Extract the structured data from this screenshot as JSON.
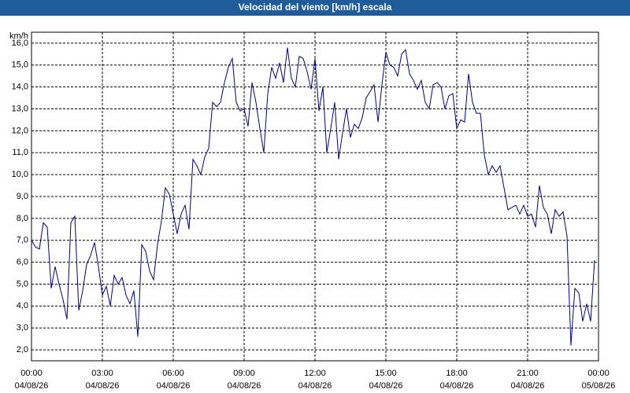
{
  "chart_data": {
    "type": "line",
    "title": "Velocidad del viento [km/h] escala",
    "y_unit": "km/h",
    "x": [
      0,
      10,
      20,
      30,
      40,
      50,
      60,
      70,
      80,
      90,
      100,
      110,
      120,
      130,
      140,
      150,
      160,
      170,
      180,
      190,
      200,
      210,
      220,
      230,
      240,
      250,
      260,
      270,
      280,
      290,
      300,
      310,
      320,
      330,
      340,
      350,
      360,
      370,
      380,
      390,
      400,
      410,
      420,
      430,
      440,
      450,
      460,
      470,
      480,
      490,
      500,
      510,
      520,
      530,
      540,
      550,
      560,
      570,
      580,
      590,
      600,
      610,
      620,
      630,
      640,
      650,
      660,
      670,
      680,
      690,
      700,
      710,
      720,
      730,
      740,
      750,
      760,
      770,
      780,
      790,
      800,
      810,
      820,
      830,
      840,
      850,
      860,
      870,
      880,
      890,
      900,
      910,
      920,
      930,
      940,
      950,
      960,
      970,
      980,
      990,
      1000,
      1010,
      1020,
      1030,
      1040,
      1050,
      1060,
      1070,
      1080,
      1090,
      1100,
      1110,
      1120,
      1130,
      1140,
      1150,
      1160,
      1170,
      1180,
      1190,
      1200,
      1210,
      1220,
      1230,
      1240,
      1250,
      1260,
      1270,
      1280,
      1290,
      1300,
      1310,
      1320,
      1330,
      1340,
      1350,
      1360,
      1370,
      1380,
      1390,
      1400,
      1410,
      1420,
      1430
    ],
    "series": [
      {
        "name": "Velocidad del viento",
        "color": "#00008b",
        "values": [
          7.0,
          6.7,
          6.6,
          7.8,
          7.6,
          4.8,
          5.8,
          5.0,
          4.3,
          3.4,
          7.8,
          8.1,
          3.8,
          4.7,
          5.9,
          6.3,
          6.9,
          5.8,
          4.5,
          4.9,
          4.0,
          5.4,
          5.0,
          5.3,
          4.5,
          4.1,
          4.7,
          2.6,
          6.8,
          6.5,
          5.6,
          5.2,
          6.8,
          7.9,
          9.4,
          9.1,
          8.2,
          7.3,
          8.2,
          8.6,
          7.5,
          10.7,
          10.4,
          10.0,
          10.8,
          11.2,
          13.3,
          13.1,
          13.3,
          14.2,
          14.9,
          15.3,
          13.3,
          12.9,
          13.0,
          12.2,
          14.2,
          13.3,
          12.1,
          11.0,
          13.7,
          14.9,
          14.4,
          15.1,
          14.2,
          15.8,
          14.4,
          14.0,
          15.4,
          15.3,
          14.7,
          13.9,
          15.3,
          12.9,
          14.0,
          11.0,
          12.1,
          13.3,
          10.7,
          11.9,
          13.0,
          11.7,
          12.3,
          12.1,
          12.6,
          13.5,
          13.8,
          14.1,
          12.4,
          14.1,
          15.6,
          15.0,
          14.9,
          14.5,
          15.5,
          15.7,
          14.6,
          14.3,
          13.9,
          14.3,
          13.3,
          13.0,
          14.1,
          14.2,
          14.0,
          13.0,
          13.6,
          13.7,
          12.1,
          12.5,
          12.4,
          14.6,
          13.3,
          12.8,
          12.8,
          10.9,
          10.0,
          10.4,
          10.1,
          10.4,
          9.4,
          8.4,
          8.5,
          8.6,
          8.2,
          8.6,
          8.1,
          8.2,
          7.6,
          9.5,
          8.5,
          8.2,
          7.3,
          8.4,
          8.1,
          8.3,
          7.2,
          2.2,
          4.8,
          4.6,
          3.3,
          4.1,
          3.3,
          6.1
        ]
      }
    ],
    "xlim": [
      0,
      1440
    ],
    "xticks": [
      {
        "value": 0,
        "label": "00:00"
      },
      {
        "value": 180,
        "label": "03:00"
      },
      {
        "value": 360,
        "label": "06:00"
      },
      {
        "value": 540,
        "label": "09:00"
      },
      {
        "value": 720,
        "label": "12:00"
      },
      {
        "value": 900,
        "label": "15:00"
      },
      {
        "value": 1080,
        "label": "18:00"
      },
      {
        "value": 1260,
        "label": "21:00"
      },
      {
        "value": 1440,
        "label": "00:00"
      }
    ],
    "xtick_dates": [
      "04/08/26",
      "04/08/26",
      "04/08/26",
      "04/08/26",
      "04/08/26",
      "04/08/26",
      "04/08/26",
      "04/08/26",
      "05/08/26"
    ],
    "ylim": [
      1.5,
      16.5
    ],
    "yticks": [
      {
        "value": 2,
        "label": "2,0"
      },
      {
        "value": 3,
        "label": "3,0"
      },
      {
        "value": 4,
        "label": "4,0"
      },
      {
        "value": 5,
        "label": "5,0"
      },
      {
        "value": 6,
        "label": "6,0"
      },
      {
        "value": 7,
        "label": "7,0"
      },
      {
        "value": 8,
        "label": "8,0"
      },
      {
        "value": 9,
        "label": "9,0"
      },
      {
        "value": 10,
        "label": "10,0"
      },
      {
        "value": 11,
        "label": "11,0"
      },
      {
        "value": 12,
        "label": "12,0"
      },
      {
        "value": 13,
        "label": "13,0"
      },
      {
        "value": 14,
        "label": "14,0"
      },
      {
        "value": 15,
        "label": "15,0"
      },
      {
        "value": 16,
        "label": "16,0"
      }
    ],
    "grid": true
  }
}
